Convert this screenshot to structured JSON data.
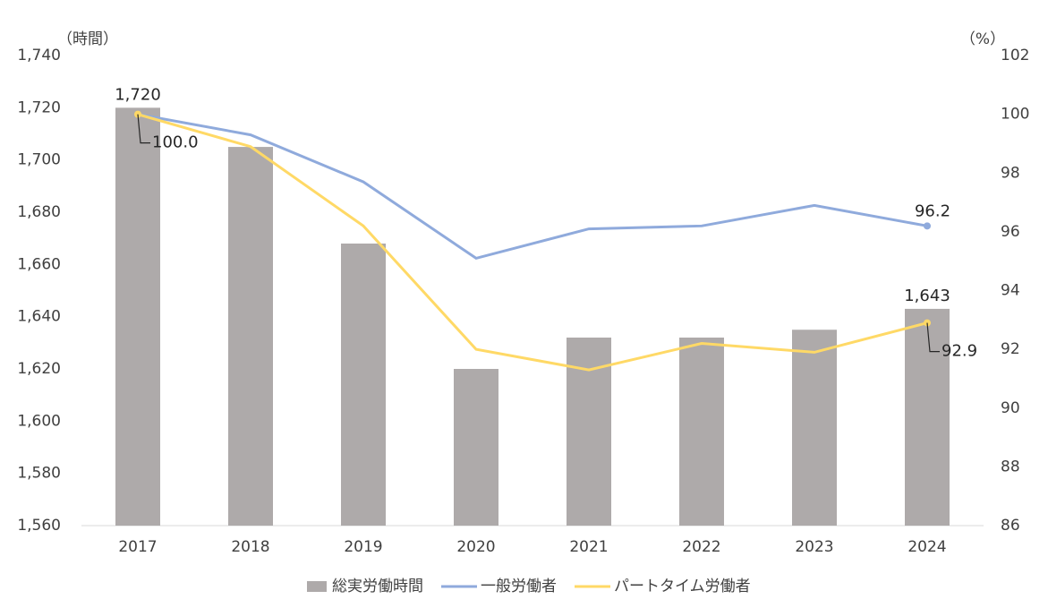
{
  "chart_data": {
    "type": "bar",
    "y_label": "（時間）",
    "y2_label": "（%）",
    "categories": [
      "2017",
      "2018",
      "2019",
      "2020",
      "2021",
      "2022",
      "2023",
      "2024"
    ],
    "series": [
      {
        "name": "総実労働時間",
        "type": "bar",
        "color": "#aeaaaa",
        "axis": "y",
        "values": [
          1720,
          1705,
          1668,
          1620,
          1632,
          1632,
          1635,
          1643
        ],
        "value_labels": [
          "1,720",
          null,
          null,
          null,
          null,
          null,
          null,
          "1,643"
        ]
      },
      {
        "name": "一般労働者",
        "type": "line",
        "color": "#8faadc",
        "axis": "y2",
        "values": [
          100,
          99.3,
          97.7,
          95.1,
          96.1,
          96.2,
          96.9,
          96.2
        ],
        "value_labels": [
          null,
          null,
          null,
          null,
          null,
          null,
          null,
          "96.2"
        ]
      },
      {
        "name": "パートタイム労働者",
        "type": "line",
        "color": "#ffd966",
        "axis": "y2",
        "values": [
          100,
          98.9,
          96.2,
          92.0,
          91.3,
          92.2,
          91.9,
          92.9
        ],
        "value_labels": [
          "100.0",
          null,
          null,
          null,
          null,
          null,
          null,
          "92.9"
        ]
      }
    ],
    "ylim": [
      1560,
      1740
    ],
    "yticks": [
      {
        "value": 1560,
        "label": "1,560"
      },
      {
        "value": 1580,
        "label": "1,580"
      },
      {
        "value": 1600,
        "label": "1,600"
      },
      {
        "value": 1620,
        "label": "1,620"
      },
      {
        "value": 1640,
        "label": "1,640"
      },
      {
        "value": 1660,
        "label": "1,660"
      },
      {
        "value": 1680,
        "label": "1,680"
      },
      {
        "value": 1700,
        "label": "1,700"
      },
      {
        "value": 1720,
        "label": "1,720"
      },
      {
        "value": 1740,
        "label": "1,740"
      }
    ],
    "y2lim": [
      86,
      102
    ],
    "y2ticks": [
      86,
      88,
      90,
      92,
      94,
      96,
      98,
      100,
      102
    ],
    "grid": false,
    "legend": "bottom"
  }
}
